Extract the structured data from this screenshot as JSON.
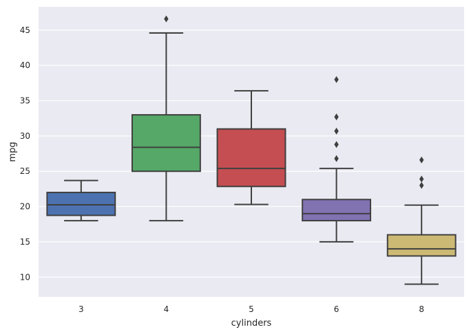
{
  "chart_data": {
    "type": "box",
    "xlabel": "cylinders",
    "ylabel": "mpg",
    "ylim": [
      7.2,
      48.3
    ],
    "yticks": [
      10,
      15,
      20,
      25,
      30,
      35,
      40,
      45
    ],
    "grid": true,
    "categories": [
      "3",
      "4",
      "5",
      "6",
      "8"
    ],
    "boxes": [
      {
        "category": "3",
        "whisker_low": 18.0,
        "q1": 18.75,
        "median": 20.25,
        "q3": 22.0,
        "whisker_high": 23.7,
        "outliers": [],
        "color": "#4c72b0"
      },
      {
        "category": "4",
        "whisker_low": 18.0,
        "q1": 25.0,
        "median": 28.4,
        "q3": 33.0,
        "whisker_high": 44.6,
        "outliers": [
          46.6
        ],
        "color": "#55a868"
      },
      {
        "category": "5",
        "whisker_low": 20.3,
        "q1": 22.85,
        "median": 25.4,
        "q3": 31.0,
        "whisker_high": 36.4,
        "outliers": [],
        "color": "#c44e52"
      },
      {
        "category": "6",
        "whisker_low": 15.0,
        "q1": 18.0,
        "median": 19.0,
        "q3": 21.0,
        "whisker_high": 25.4,
        "outliers": [
          26.8,
          28.8,
          30.7,
          32.7,
          38.0
        ],
        "color": "#8172b2"
      },
      {
        "category": "8",
        "whisker_low": 9.0,
        "q1": 13.0,
        "median": 14.0,
        "q3": 16.0,
        "whisker_high": 20.2,
        "outliers": [
          23.0,
          23.9,
          26.6
        ],
        "color": "#ccb974"
      }
    ]
  }
}
